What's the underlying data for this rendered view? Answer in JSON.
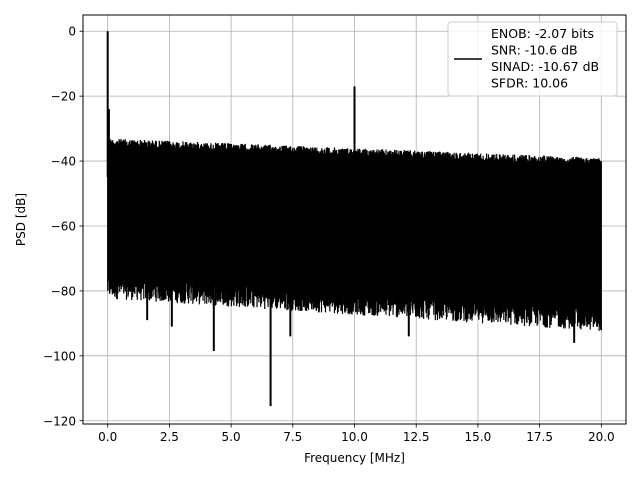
{
  "chart_data": {
    "type": "line",
    "title": "",
    "xlabel": "Frequency [MHz]",
    "ylabel": "PSD [dB]",
    "xlim": [
      -1.0,
      21.0
    ],
    "ylim": [
      -121.0,
      5.0
    ],
    "x_ticks": [
      0.0,
      2.5,
      5.0,
      7.5,
      10.0,
      12.5,
      15.0,
      17.5,
      20.0
    ],
    "x_tick_labels": [
      "0.0",
      "2.5",
      "5.0",
      "7.5",
      "10.0",
      "12.5",
      "15.0",
      "17.5",
      "20.0"
    ],
    "y_ticks": [
      0,
      -20,
      -40,
      -60,
      -80,
      -100,
      -120
    ],
    "y_tick_labels": [
      "0",
      "−20",
      "−40",
      "−60",
      "−80",
      "−100",
      "−120"
    ],
    "grid": true,
    "legend": {
      "placement": "top-right",
      "entries": [
        "ENOB: -2.07 bits",
        "SNR: -10.6 dB",
        "SINAD: -10.67 dB",
        "SFDR: 10.06"
      ]
    },
    "series": [
      {
        "color": "#000000",
        "x_start": 0.0,
        "x_end": 20.0,
        "noise_floor_top_start": -33,
        "noise_floor_top_end": -39,
        "noise_floor_bottom_start": -80,
        "noise_floor_bottom_end": -90,
        "peaks": [
          {
            "x": 0.0,
            "y": 0.0
          },
          {
            "x": 0.05,
            "y": -24.0
          },
          {
            "x": 10.0,
            "y": -17.0
          }
        ],
        "dips": [
          {
            "x": 1.6,
            "y": -89.0
          },
          {
            "x": 2.6,
            "y": -91.0
          },
          {
            "x": 4.3,
            "y": -98.5
          },
          {
            "x": 6.6,
            "y": -115.5
          },
          {
            "x": 7.4,
            "y": -94.0
          },
          {
            "x": 12.2,
            "y": -94.0
          },
          {
            "x": 18.9,
            "y": -96.0
          }
        ]
      }
    ]
  }
}
